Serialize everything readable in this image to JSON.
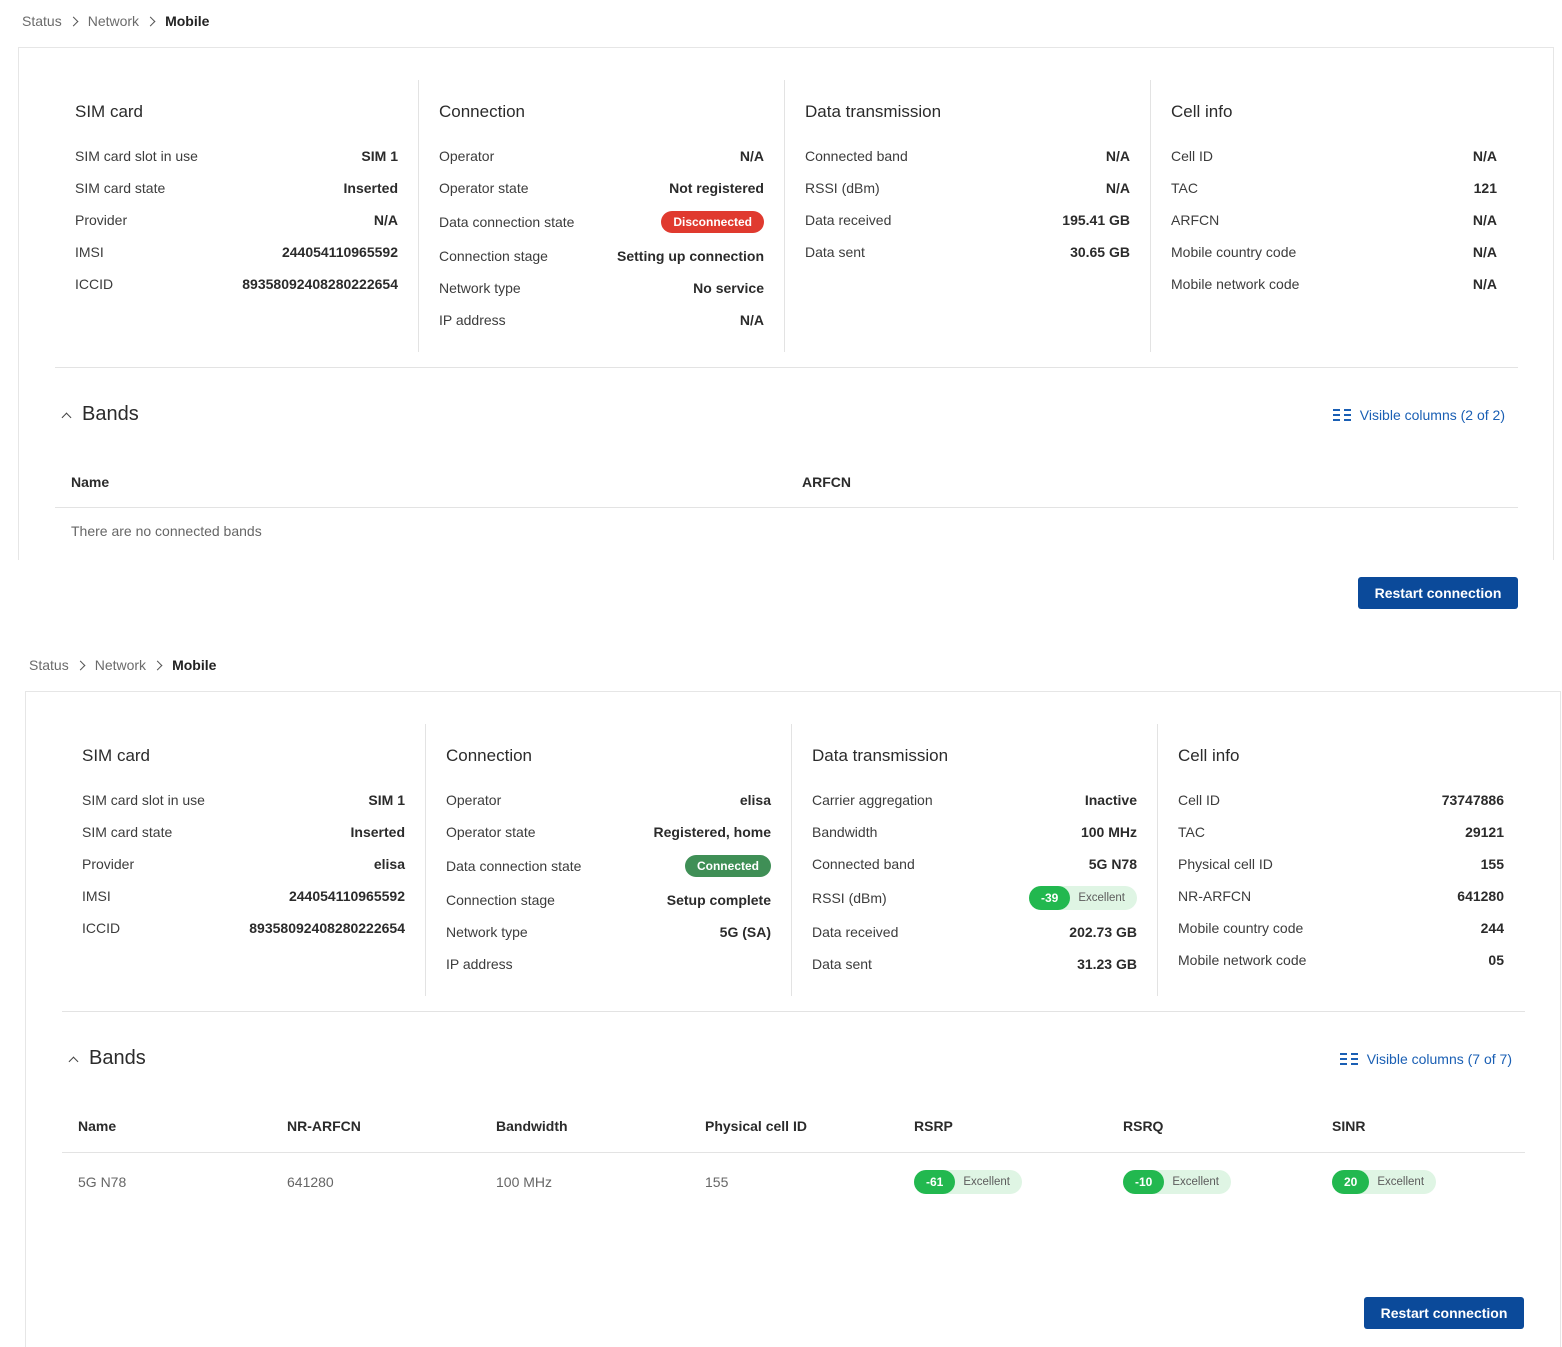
{
  "screens": [
    {
      "breadcrumb": [
        "Status",
        "Network",
        "Mobile"
      ],
      "sim": {
        "title": "SIM card",
        "rows": [
          {
            "k": "SIM card slot in use",
            "v": "SIM 1"
          },
          {
            "k": "SIM card state",
            "v": "Inserted"
          },
          {
            "k": "Provider",
            "v": "N/A"
          },
          {
            "k": "IMSI",
            "v": "244054110965592"
          },
          {
            "k": "ICCID",
            "v": "89358092408280222654"
          }
        ]
      },
      "connection": {
        "title": "Connection",
        "rows": [
          {
            "k": "Operator",
            "v": "N/A"
          },
          {
            "k": "Operator state",
            "v": "Not registered"
          },
          {
            "k": "Data connection state",
            "v": "Disconnected",
            "badge": "red"
          },
          {
            "k": "Connection stage",
            "v": "Setting up connection"
          },
          {
            "k": "Network type",
            "v": "No service"
          },
          {
            "k": "IP address",
            "v": "N/A"
          }
        ]
      },
      "data": {
        "title": "Data transmission",
        "rows": [
          {
            "k": "Connected band",
            "v": "N/A"
          },
          {
            "k": "RSSI (dBm)",
            "v": "N/A"
          },
          {
            "k": "Data received",
            "v": "195.41 GB"
          },
          {
            "k": "Data sent",
            "v": "30.65 GB"
          }
        ]
      },
      "cell": {
        "title": "Cell info",
        "rows": [
          {
            "k": "Cell ID",
            "v": "N/A"
          },
          {
            "k": "TAC",
            "v": "121"
          },
          {
            "k": "ARFCN",
            "v": "N/A"
          },
          {
            "k": "Mobile country code",
            "v": "N/A"
          },
          {
            "k": "Mobile network code",
            "v": "N/A"
          }
        ]
      },
      "bands": {
        "title": "Bands",
        "visible_columns": "Visible columns (2 of 2)",
        "headers": [
          "Name",
          "ARFCN"
        ],
        "empty": "There are no connected bands"
      },
      "restart_label": "Restart connection"
    },
    {
      "breadcrumb": [
        "Status",
        "Network",
        "Mobile"
      ],
      "sim": {
        "title": "SIM card",
        "rows": [
          {
            "k": "SIM card slot in use",
            "v": "SIM 1"
          },
          {
            "k": "SIM card state",
            "v": "Inserted"
          },
          {
            "k": "Provider",
            "v": "elisa"
          },
          {
            "k": "IMSI",
            "v": "244054110965592"
          },
          {
            "k": "ICCID",
            "v": "89358092408280222654"
          }
        ]
      },
      "connection": {
        "title": "Connection",
        "rows": [
          {
            "k": "Operator",
            "v": "elisa"
          },
          {
            "k": "Operator state",
            "v": "Registered, home"
          },
          {
            "k": "Data connection state",
            "v": "Connected",
            "badge": "green"
          },
          {
            "k": "Connection stage",
            "v": "Setup complete"
          },
          {
            "k": "Network type",
            "v": "5G (SA)"
          },
          {
            "k": "IP address",
            "v": ""
          }
        ]
      },
      "data": {
        "title": "Data transmission",
        "rows": [
          {
            "k": "Carrier aggregation",
            "v": "Inactive"
          },
          {
            "k": "Bandwidth",
            "v": "100 MHz"
          },
          {
            "k": "Connected band",
            "v": "5G N78"
          },
          {
            "k": "RSSI (dBm)",
            "v": "-39",
            "quality": "Excellent"
          },
          {
            "k": "Data received",
            "v": "202.73 GB"
          },
          {
            "k": "Data sent",
            "v": "31.23 GB"
          }
        ]
      },
      "cell": {
        "title": "Cell info",
        "rows": [
          {
            "k": "Cell ID",
            "v": "73747886"
          },
          {
            "k": "TAC",
            "v": "29121"
          },
          {
            "k": "Physical cell ID",
            "v": "155"
          },
          {
            "k": "NR-ARFCN",
            "v": "641280"
          },
          {
            "k": "Mobile country code",
            "v": "244"
          },
          {
            "k": "Mobile network code",
            "v": "05"
          }
        ]
      },
      "bands": {
        "title": "Bands",
        "visible_columns": "Visible columns (7 of 7)",
        "headers": [
          "Name",
          "NR-ARFCN",
          "Bandwidth",
          "Physical cell ID",
          "RSRP",
          "RSRQ",
          "SINR"
        ],
        "rows": [
          {
            "name": "5G N78",
            "arfcn": "641280",
            "bandwidth": "100 MHz",
            "pci": "155",
            "rsrp": "-61",
            "rsrp_q": "Excellent",
            "rsrq": "-10",
            "rsrq_q": "Excellent",
            "sinr": "20",
            "sinr_q": "Excellent"
          }
        ]
      },
      "restart_label": "Restart connection"
    }
  ],
  "colors": {
    "disconnected": "#e03a2f",
    "connected": "#3f8f56",
    "excellent": "#22b84f",
    "primary": "#0b4a9a",
    "link": "#1a5fb4"
  }
}
